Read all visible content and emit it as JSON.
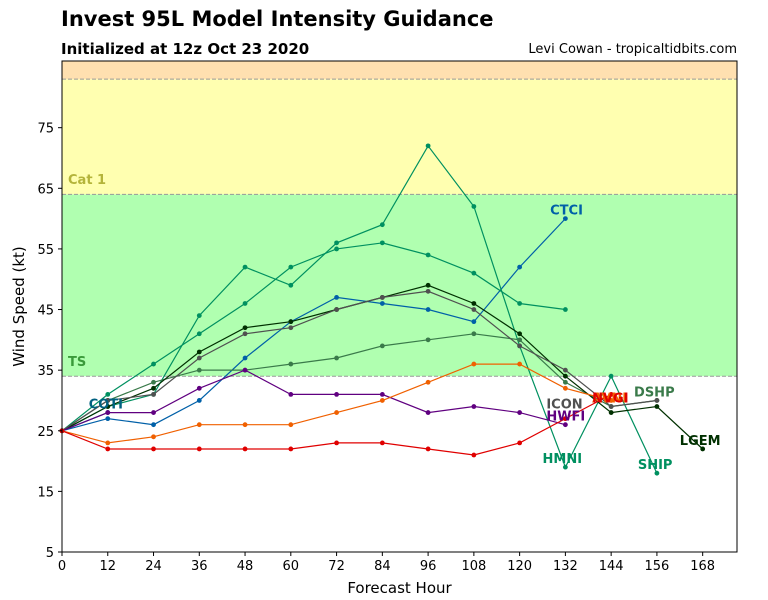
{
  "header": {
    "title": "Invest 95L Model Intensity Guidance",
    "subtitle": "Initialized at 12z Oct 23 2020",
    "credit": "Levi Cowan - tropicaltidbits.com"
  },
  "chart_data": {
    "type": "line",
    "xlabel": "Forecast Hour",
    "ylabel": "Wind Speed (kt)",
    "xlim": [
      0,
      177
    ],
    "ylim": [
      5,
      86
    ],
    "xticks": [
      0,
      12,
      24,
      36,
      48,
      60,
      72,
      84,
      96,
      108,
      120,
      132,
      144,
      156,
      168
    ],
    "yticks": [
      5,
      15,
      25,
      35,
      45,
      55,
      65,
      75
    ],
    "grid": false,
    "bands": [
      {
        "label": "TS",
        "from": 34,
        "to": 64,
        "color": "#b0ffb0",
        "label_color": "#3a9a3a",
        "label_y": 36.5
      },
      {
        "label": "Cat 1",
        "from": 64,
        "to": 83,
        "color": "#ffffb0",
        "label_color": "#b4b43a",
        "label_y": 66.5
      },
      {
        "label": "",
        "from": 83,
        "to": 86,
        "color": "#ffe0b0",
        "label_color": "#000000",
        "label_y": 0
      }
    ],
    "series": [
      {
        "name": "CTCI",
        "color": "#0060a8",
        "x": [
          0,
          12,
          24,
          36,
          48,
          60,
          72,
          84,
          96,
          108,
          120,
          132
        ],
        "y": [
          25,
          27,
          26,
          30,
          37,
          43,
          47,
          46,
          45,
          43,
          52,
          60
        ],
        "label_x": 128,
        "label_y": 61.5
      },
      {
        "name": "COTI",
        "color": "#006080",
        "x": [
          0,
          12
        ],
        "y": [
          25,
          28
        ],
        "label_x": 7,
        "label_y": 29.5
      },
      {
        "name": "HMNI",
        "color": "#009060",
        "x": [
          0,
          12,
          24,
          36,
          48,
          60,
          72,
          84,
          96,
          108,
          120,
          132
        ],
        "y": [
          25,
          31,
          36,
          41,
          46,
          52,
          55,
          56,
          54,
          51,
          46,
          45
        ],
        "label_x": 126,
        "label_y": 20.5
      },
      {
        "name": "SHIP",
        "color": "#009060",
        "x": [
          0,
          12,
          24,
          36,
          48,
          60,
          72,
          84,
          96,
          108,
          120,
          132,
          144,
          156
        ],
        "y": [
          25,
          29,
          31,
          44,
          52,
          49,
          56,
          59,
          72,
          62,
          39,
          19,
          34,
          18
        ],
        "label_x": 151,
        "label_y": 19.5
      },
      {
        "name": "DSHP",
        "color": "#3a7a4a",
        "x": [
          0,
          12,
          24,
          36,
          48,
          60,
          72,
          84,
          96,
          108,
          120,
          132,
          144,
          156
        ],
        "y": [
          25,
          30,
          33,
          35,
          35,
          36,
          37,
          39,
          40,
          41,
          40,
          33,
          29,
          30
        ],
        "label_x": 150,
        "label_y": 31.5
      },
      {
        "name": "LGEM",
        "color": "#003000",
        "x": [
          0,
          12,
          24,
          36,
          48,
          60,
          72,
          84,
          96,
          108,
          120,
          132,
          144,
          156,
          168
        ],
        "y": [
          25,
          29,
          32,
          38,
          42,
          43,
          45,
          47,
          49,
          46,
          41,
          34,
          28,
          29,
          22
        ],
        "label_x": 162,
        "label_y": 23.5
      },
      {
        "name": "ICON",
        "color": "#505050",
        "x": [
          0,
          12,
          24,
          36,
          48,
          60,
          72,
          84,
          96,
          108,
          120,
          132,
          144,
          156
        ],
        "y": [
          25,
          30,
          31,
          37,
          41,
          42,
          45,
          47,
          48,
          45,
          39,
          35,
          29,
          30
        ],
        "label_x": 127,
        "label_y": 29.5
      },
      {
        "name": "HWFI",
        "color": "#600080",
        "x": [
          0,
          12,
          24,
          36,
          48,
          60,
          72,
          84,
          96,
          108,
          120,
          132
        ],
        "y": [
          25,
          28,
          28,
          32,
          35,
          31,
          31,
          31,
          28,
          29,
          28,
          26
        ],
        "label_x": 127,
        "label_y": 27.5
      },
      {
        "name": "AVNI",
        "color": "#f06000",
        "x": [
          0,
          12,
          24,
          36,
          48,
          60,
          72,
          84,
          96,
          108,
          120,
          132,
          144
        ],
        "y": [
          25,
          23,
          24,
          26,
          26,
          26,
          28,
          30,
          33,
          36,
          36,
          32,
          30
        ],
        "label_x": 139,
        "label_y": 30.5
      },
      {
        "name": "NVGI",
        "color": "#e00000",
        "x": [
          0,
          12,
          24,
          36,
          48,
          60,
          72,
          84,
          96,
          108,
          120,
          132,
          144
        ],
        "y": [
          25,
          22,
          22,
          22,
          22,
          22,
          23,
          23,
          22,
          21,
          23,
          27,
          31
        ],
        "label_x": 139,
        "label_y": 30.5
      }
    ]
  }
}
